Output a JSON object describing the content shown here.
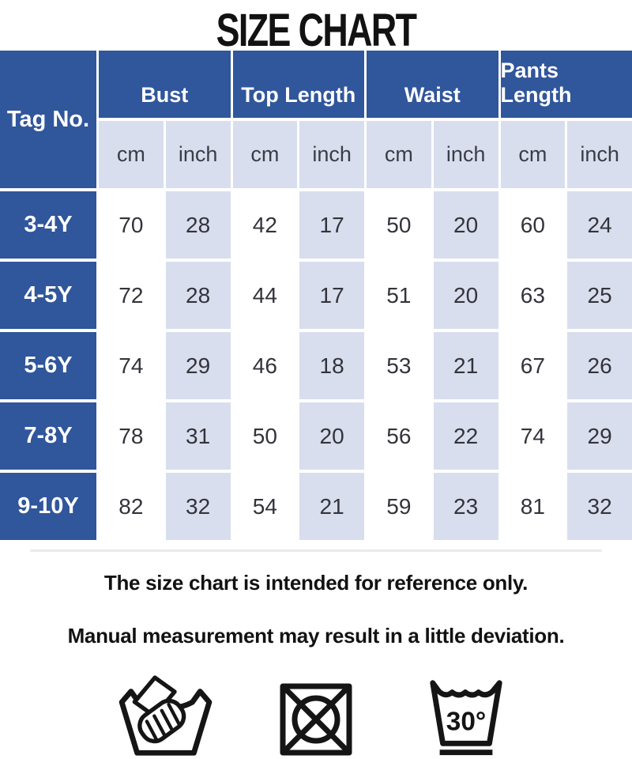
{
  "title": "SIZE CHART",
  "table": {
    "corner_label": "Tag No.",
    "group_labels": [
      "Bust",
      "Top Length",
      "Waist",
      "Pants Length"
    ],
    "unit_labels": [
      "cm",
      "inch",
      "cm",
      "inch",
      "cm",
      "inch",
      "cm",
      "inch"
    ],
    "rows": [
      {
        "tag": "3-4Y",
        "values": [
          "70",
          "28",
          "42",
          "17",
          "50",
          "20",
          "60",
          "24"
        ]
      },
      {
        "tag": "4-5Y",
        "values": [
          "72",
          "28",
          "44",
          "17",
          "51",
          "20",
          "63",
          "25"
        ]
      },
      {
        "tag": "5-6Y",
        "values": [
          "74",
          "29",
          "46",
          "18",
          "53",
          "21",
          "67",
          "26"
        ]
      },
      {
        "tag": "7-8Y",
        "values": [
          "78",
          "31",
          "50",
          "20",
          "56",
          "22",
          "74",
          "29"
        ]
      },
      {
        "tag": "9-10Y",
        "values": [
          "82",
          "32",
          "54",
          "21",
          "59",
          "23",
          "81",
          "32"
        ]
      }
    ]
  },
  "notes": [
    "The size chart is intended for reference only.",
    "Manual measurement may result in a little deviation."
  ],
  "care_icons": [
    {
      "name": "hand-wash-icon"
    },
    {
      "name": "do-not-tumble-dry-icon"
    },
    {
      "name": "wash-30-degrees-icon",
      "label": "30°"
    }
  ],
  "colors": {
    "header_blue": "#30569B",
    "light_blue": "#D9DEEE",
    "cell_white": "#FFFFFF",
    "cell_text": "#33333B",
    "ink_black": "#121212"
  },
  "chart_data": {
    "type": "table",
    "title": "SIZE CHART",
    "columns": [
      "Tag No.",
      "Bust cm",
      "Bust inch",
      "Top Length cm",
      "Top Length inch",
      "Waist cm",
      "Waist inch",
      "Pants Length cm",
      "Pants Length inch"
    ],
    "rows": [
      [
        "3-4Y",
        70,
        28,
        42,
        17,
        50,
        20,
        60,
        24
      ],
      [
        "4-5Y",
        72,
        28,
        44,
        17,
        51,
        20,
        63,
        25
      ],
      [
        "5-6Y",
        74,
        29,
        46,
        18,
        53,
        21,
        67,
        26
      ],
      [
        "7-8Y",
        78,
        31,
        50,
        20,
        56,
        22,
        74,
        29
      ],
      [
        "9-10Y",
        82,
        32,
        54,
        21,
        59,
        23,
        81,
        32
      ]
    ]
  }
}
